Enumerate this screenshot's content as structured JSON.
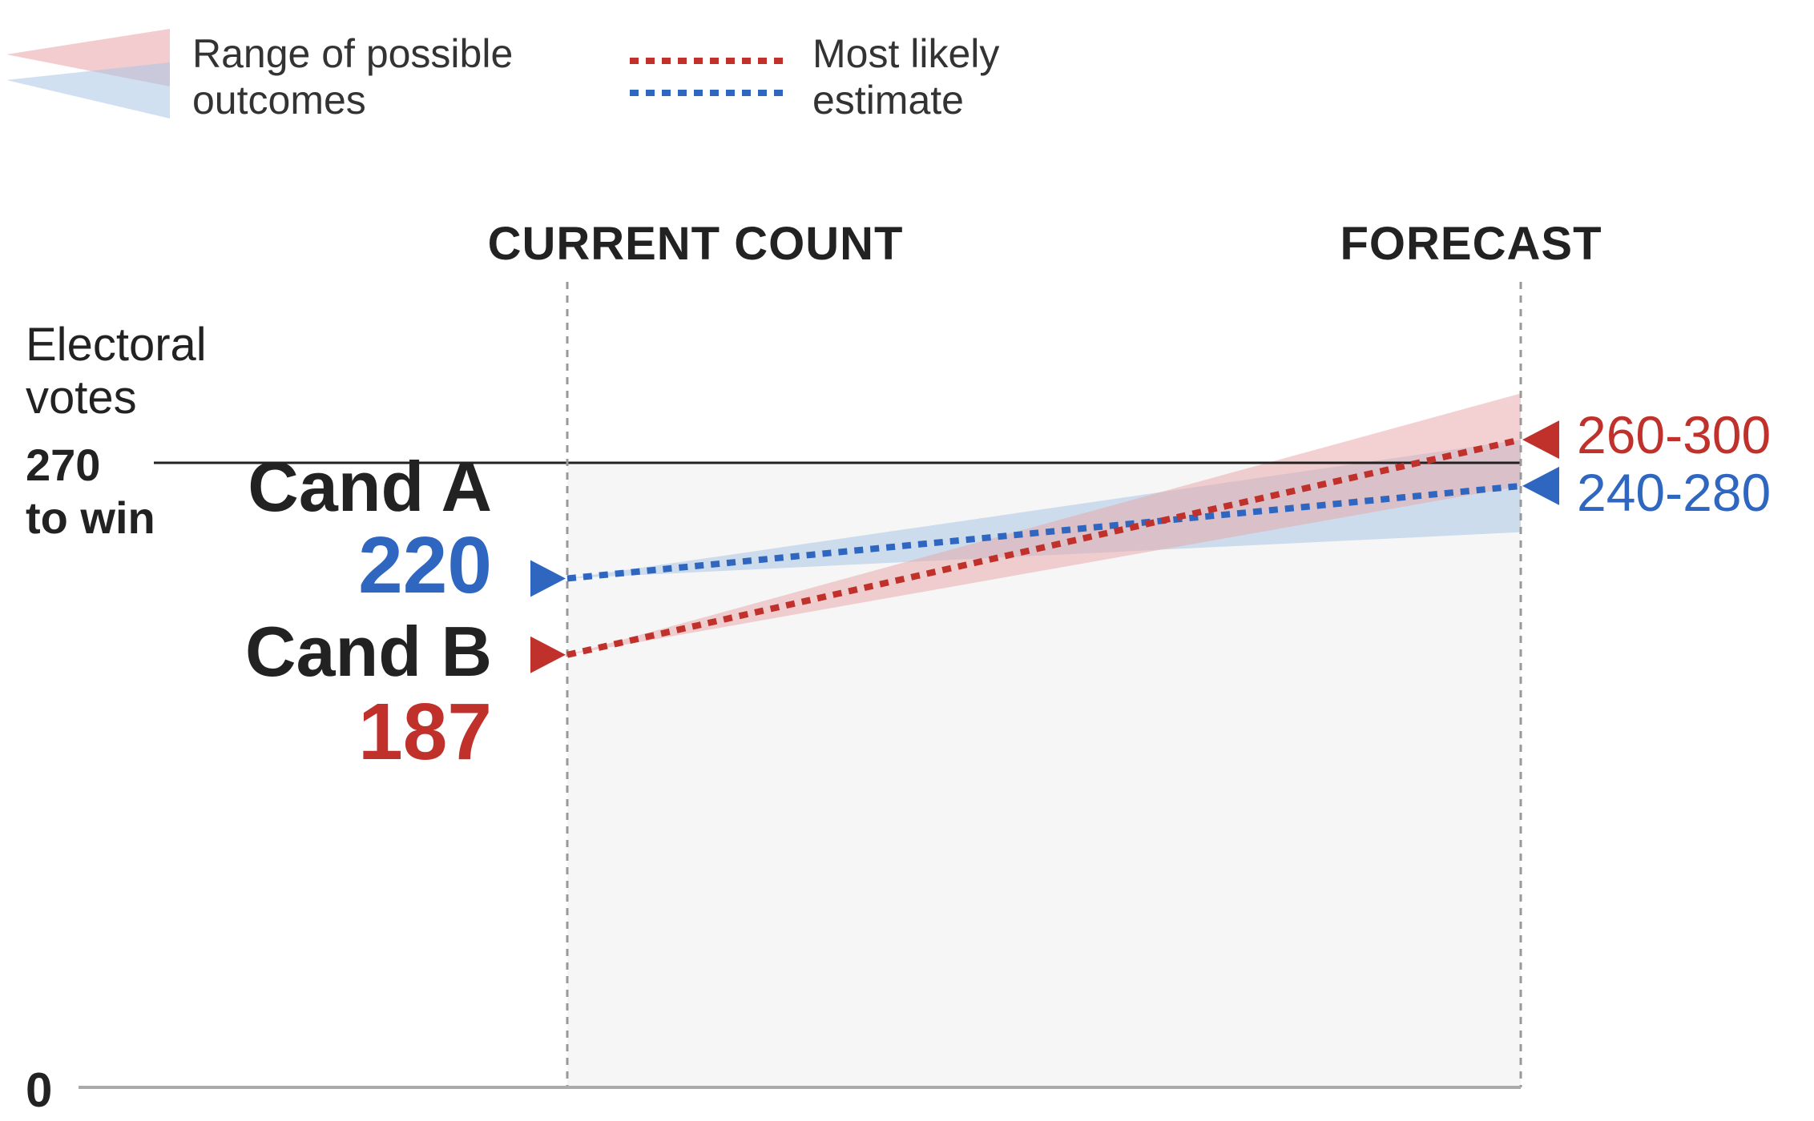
{
  "colors": {
    "red": "#c0312b",
    "blue": "#2e66c0",
    "red_band": "#e8a3a6",
    "blue_band": "#a9c6e6",
    "plot_bg": "#f6f6f6",
    "guide": "#999999",
    "axis": "#aaaaaa"
  },
  "legend": {
    "range_line1": "Range of possible",
    "range_line2": "outcomes",
    "estimate_line1": "Most likely",
    "estimate_line2": "estimate"
  },
  "chart_data": {
    "type": "line",
    "x": [
      "CURRENT COUNT",
      "FORECAST"
    ],
    "ylabel_line1": "Electoral",
    "ylabel_line2": "votes",
    "ylim": [
      0,
      270
    ],
    "zero_label": "0",
    "threshold": {
      "value": 270,
      "label_line1": "270",
      "label_line2": "to win"
    },
    "series": [
      {
        "name": "Cand A",
        "color": "blue",
        "current": 220,
        "current_label": "220",
        "forecast_estimate": 260,
        "forecast_range": [
          240,
          280
        ],
        "forecast_label": "240-280"
      },
      {
        "name": "Cand B",
        "color": "red",
        "current": 187,
        "current_label": "187",
        "forecast_estimate": 280,
        "forecast_range": [
          260,
          300
        ],
        "forecast_label": "260-300"
      }
    ]
  }
}
